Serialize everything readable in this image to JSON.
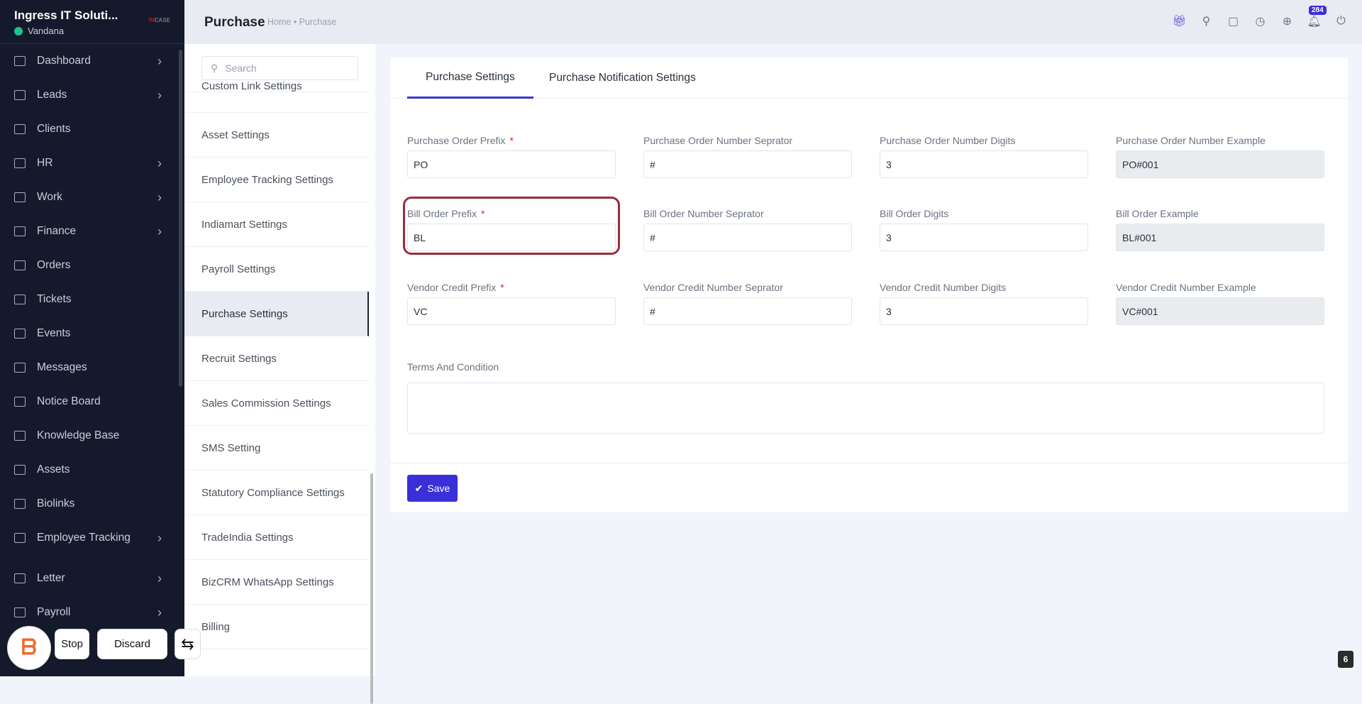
{
  "sidebar": {
    "company": "Ingress IT Soluti...",
    "user": "Vandana",
    "logo_text": "INCASE",
    "items": [
      {
        "label": "Dashboard",
        "icon": "home-icon",
        "chevron": true
      },
      {
        "label": "Leads",
        "icon": "user-card-icon",
        "chevron": true
      },
      {
        "label": "Clients",
        "icon": "chart-icon",
        "chevron": false
      },
      {
        "label": "HR",
        "icon": "users-icon",
        "chevron": true
      },
      {
        "label": "Work",
        "icon": "briefcase-icon",
        "chevron": true
      },
      {
        "label": "Finance",
        "icon": "dollar-icon",
        "chevron": true
      },
      {
        "label": "Orders",
        "icon": "cart-icon",
        "chevron": false
      },
      {
        "label": "Tickets",
        "icon": "headset-icon",
        "chevron": false
      },
      {
        "label": "Events",
        "icon": "calendar-icon",
        "chevron": false
      },
      {
        "label": "Messages",
        "icon": "message-icon",
        "chevron": false
      },
      {
        "label": "Notice Board",
        "icon": "clipboard-icon",
        "chevron": false
      },
      {
        "label": "Knowledge Base",
        "icon": "document-icon",
        "chevron": false
      },
      {
        "label": "Assets",
        "icon": "monitor-icon",
        "chevron": false
      },
      {
        "label": "Biolinks",
        "icon": "phone-icon",
        "chevron": false
      },
      {
        "label": "Employee Tracking",
        "icon": "tracking-icon",
        "chevron": true
      },
      {
        "label": "Letter",
        "icon": "mail-icon",
        "chevron": true
      },
      {
        "label": "Payroll",
        "icon": "payroll-icon",
        "chevron": true
      }
    ]
  },
  "header": {
    "title": "Purchase",
    "breadcrumb": "Home • Purchase",
    "notification_count": "284"
  },
  "settings_list": {
    "search_placeholder": "Search",
    "items": [
      "Custom Link Settings",
      "Asset Settings",
      "Employee Tracking Settings",
      "Indiamart Settings",
      "Payroll Settings",
      "Purchase Settings",
      "Recruit Settings",
      "Sales Commission Settings",
      "SMS Setting",
      "Statutory Compliance Settings",
      "TradeIndia Settings",
      "BizCRM WhatsApp Settings",
      "Billing"
    ],
    "active": "Purchase Settings"
  },
  "tabs": [
    "Purchase Settings",
    "Purchase Notification Settings"
  ],
  "form": {
    "rows": [
      [
        {
          "label": "Purchase Order Prefix",
          "required": true,
          "value": "PO"
        },
        {
          "label": "Purchase Order Number Seprator",
          "value": "#"
        },
        {
          "label": "Purchase Order Number Digits",
          "value": "3"
        },
        {
          "label": "Purchase Order Number Example",
          "value": "PO#001",
          "readonly": true
        }
      ],
      [
        {
          "label": "Bill Order Prefix",
          "required": true,
          "value": "BL"
        },
        {
          "label": "Bill Order Number Seprator",
          "value": "#"
        },
        {
          "label": "Bill Order Digits",
          "value": "3"
        },
        {
          "label": "Bill Order Example",
          "value": "BL#001",
          "readonly": true
        }
      ],
      [
        {
          "label": "Vendor Credit Prefix",
          "required": true,
          "value": "VC"
        },
        {
          "label": "Vendor Credit Number Seprator",
          "value": "#"
        },
        {
          "label": "Vendor Credit Number Digits",
          "value": "3"
        },
        {
          "label": "Vendor Credit Number Example",
          "value": "VC#001",
          "readonly": true
        }
      ]
    ],
    "terms_label": "Terms And Condition",
    "terms_value": "",
    "save_label": "Save"
  },
  "overlay": {
    "stop": "Stop",
    "discard": "Discard",
    "page": "6"
  },
  "colors": {
    "sidebar": "#141a2c",
    "accent": "#3b2fd9",
    "highlight": "#9b2c3c"
  }
}
